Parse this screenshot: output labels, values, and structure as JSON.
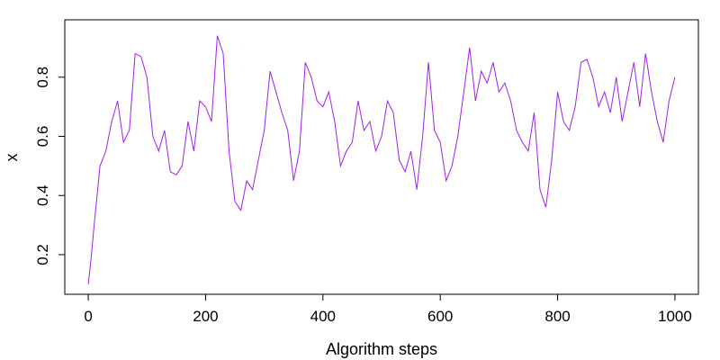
{
  "chart_data": {
    "type": "line",
    "title": "",
    "xlabel": "Algorithm steps",
    "ylabel": "x",
    "xlim": [
      -40,
      1040
    ],
    "ylim": [
      0.066,
      0.994
    ],
    "xticks": [
      0,
      200,
      400,
      600,
      800,
      1000
    ],
    "yticks": [
      0.2,
      0.4,
      0.6,
      0.8
    ],
    "xtick_labels": [
      "0",
      "200",
      "400",
      "600",
      "800",
      "1000"
    ],
    "ytick_labels": [
      "0.2",
      "0.4",
      "0.6",
      "0.8"
    ],
    "grid": false,
    "line_color": "#a020f0",
    "series": [
      {
        "x": [
          0,
          5,
          10,
          20,
          30,
          40,
          50,
          60,
          70,
          80,
          90,
          100,
          110,
          120,
          130,
          140,
          150,
          160,
          170,
          180,
          190,
          200,
          210,
          220,
          230,
          240,
          250,
          260,
          270,
          280,
          290,
          300,
          310,
          320,
          330,
          340,
          350,
          360,
          370,
          380,
          390,
          400,
          410,
          420,
          430,
          440,
          450,
          460,
          470,
          480,
          490,
          500,
          510,
          520,
          530,
          540,
          550,
          560,
          570,
          580,
          590,
          600,
          610,
          620,
          630,
          640,
          650,
          660,
          670,
          680,
          690,
          700,
          710,
          720,
          730,
          740,
          750,
          760,
          770,
          780,
          790,
          800,
          810,
          820,
          830,
          840,
          850,
          860,
          870,
          880,
          890,
          900,
          910,
          920,
          930,
          940,
          950,
          960,
          970,
          980,
          990,
          1000
        ],
        "y": [
          0.1,
          0.19,
          0.3,
          0.5,
          0.55,
          0.65,
          0.72,
          0.58,
          0.62,
          0.88,
          0.87,
          0.8,
          0.6,
          0.55,
          0.62,
          0.48,
          0.47,
          0.5,
          0.65,
          0.55,
          0.72,
          0.7,
          0.65,
          0.94,
          0.88,
          0.55,
          0.38,
          0.35,
          0.45,
          0.42,
          0.52,
          0.62,
          0.82,
          0.75,
          0.68,
          0.62,
          0.45,
          0.55,
          0.85,
          0.8,
          0.72,
          0.7,
          0.75,
          0.65,
          0.5,
          0.55,
          0.58,
          0.72,
          0.62,
          0.65,
          0.55,
          0.6,
          0.72,
          0.68,
          0.52,
          0.48,
          0.55,
          0.42,
          0.6,
          0.85,
          0.62,
          0.58,
          0.45,
          0.5,
          0.6,
          0.75,
          0.9,
          0.72,
          0.82,
          0.78,
          0.85,
          0.75,
          0.78,
          0.72,
          0.62,
          0.58,
          0.55,
          0.68,
          0.42,
          0.36,
          0.52,
          0.75,
          0.65,
          0.62,
          0.7,
          0.85,
          0.86,
          0.8,
          0.7,
          0.75,
          0.68,
          0.8,
          0.65,
          0.75,
          0.85,
          0.7,
          0.88,
          0.75,
          0.65,
          0.58,
          0.72,
          0.8
        ]
      }
    ]
  }
}
